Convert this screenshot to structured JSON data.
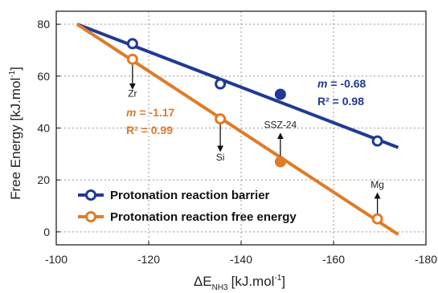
{
  "chart_data": {
    "type": "scatter",
    "xlabel": "ΔE",
    "xlabel_sub": "NH3",
    "xlabel_unit": "[kJ.mol",
    "xlabel_unit_sup": "-1",
    "xlabel_unit_end": "]",
    "ylabel": "Free Energy [kJ.mol",
    "ylabel_sup": "-1",
    "ylabel_end": "]",
    "xlim": [
      -100,
      -180
    ],
    "ylim": [
      -5,
      85
    ],
    "xticks": [
      -100,
      -120,
      -140,
      -160,
      -180
    ],
    "yticks": [
      0,
      20,
      40,
      60,
      80
    ],
    "xtick_labels": [
      "-100",
      "-120",
      "-140",
      "-160",
      "-180"
    ],
    "ytick_labels": [
      "0",
      "20",
      "40",
      "60",
      "80"
    ],
    "grid": true,
    "legend_position": "bottom-left",
    "series": [
      {
        "name": "Protonation reaction barrier",
        "color": "#1f3a93",
        "points": [
          {
            "x": -116.5,
            "y": 72.5,
            "filled": false
          },
          {
            "x": -135.5,
            "y": 57,
            "filled": false
          },
          {
            "x": -148.5,
            "y": 53,
            "filled": true
          },
          {
            "x": -169.5,
            "y": 35,
            "filled": false
          }
        ],
        "fit": {
          "x": [
            -104.5,
            -174
          ],
          "y": [
            80,
            32.5
          ]
        },
        "slope_label": "m",
        "slope_value": " = -0.68",
        "r2_label": "R² = 0.98"
      },
      {
        "name": "Protonation reaction free energy",
        "color": "#e07b28",
        "points": [
          {
            "x": -116.5,
            "y": 66.5,
            "filled": false
          },
          {
            "x": -135.5,
            "y": 43.5,
            "filled": false
          },
          {
            "x": -148.5,
            "y": 27,
            "filled": true
          },
          {
            "x": -169.5,
            "y": 5,
            "filled": false
          }
        ],
        "fit": {
          "x": [
            -104.5,
            -174
          ],
          "y": [
            80,
            -1
          ]
        },
        "slope_label": "m",
        "slope_value": " = -1.17",
        "r2_label": "R² = 0.99"
      }
    ],
    "annotations": [
      {
        "text": "Zr",
        "x": -116.5,
        "arrow": "down",
        "y_from": 65,
        "y_to": 56,
        "label_y": 52
      },
      {
        "text": "Si",
        "x": -135.5,
        "arrow": "down",
        "y_from": 42,
        "y_to": 32,
        "label_y": 27.5
      },
      {
        "text": "SSZ-24",
        "x": -148.5,
        "arrow": "up",
        "y_from": 28.5,
        "y_to": 37,
        "label_y": 40
      },
      {
        "text": "Mg",
        "x": -169.5,
        "arrow": "up",
        "y_from": 6.5,
        "y_to": 14,
        "label_y": 17
      }
    ]
  }
}
